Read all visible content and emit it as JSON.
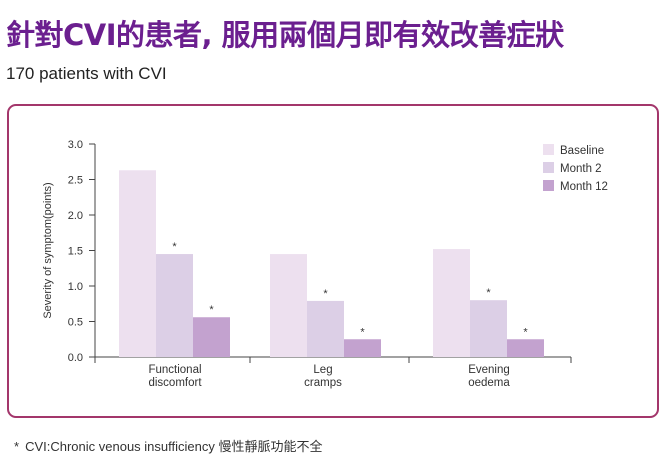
{
  "title": "針對CVI的患者, 服用兩個月即有效改善症狀",
  "subtitle": "170 patients with CVI",
  "footnote": {
    "marker": "*",
    "text": "CVI:Chronic venous insufficiency 慢性靜脈功能不全"
  },
  "colors": {
    "title": "#6b1f8f",
    "border": "#a3366b",
    "baseline": "#ede0ef",
    "month2": "#dccfe6",
    "month12": "#c3a2cf"
  },
  "chart_data": {
    "type": "bar",
    "categories": [
      [
        "Functional",
        "discomfort"
      ],
      [
        "Leg",
        "cramps"
      ],
      [
        "Evening",
        "oedema"
      ]
    ],
    "series": [
      {
        "name": "Baseline",
        "values": [
          2.63,
          1.45,
          1.52
        ],
        "significant": [
          false,
          false,
          false
        ]
      },
      {
        "name": "Month 2",
        "values": [
          1.45,
          0.79,
          0.8
        ],
        "significant": [
          true,
          true,
          true
        ]
      },
      {
        "name": "Month 12",
        "values": [
          0.56,
          0.25,
          0.25
        ],
        "significant": [
          true,
          true,
          true
        ]
      }
    ],
    "ylabel": "Severity of symptom(points)",
    "ylim": [
      0,
      3.0
    ],
    "yticks": [
      "0.0",
      "0.5",
      "1.0",
      "1.5",
      "2.0",
      "2.5",
      "3.0"
    ],
    "significance_marker": "*",
    "legend_position": "top-right",
    "grid": false
  }
}
